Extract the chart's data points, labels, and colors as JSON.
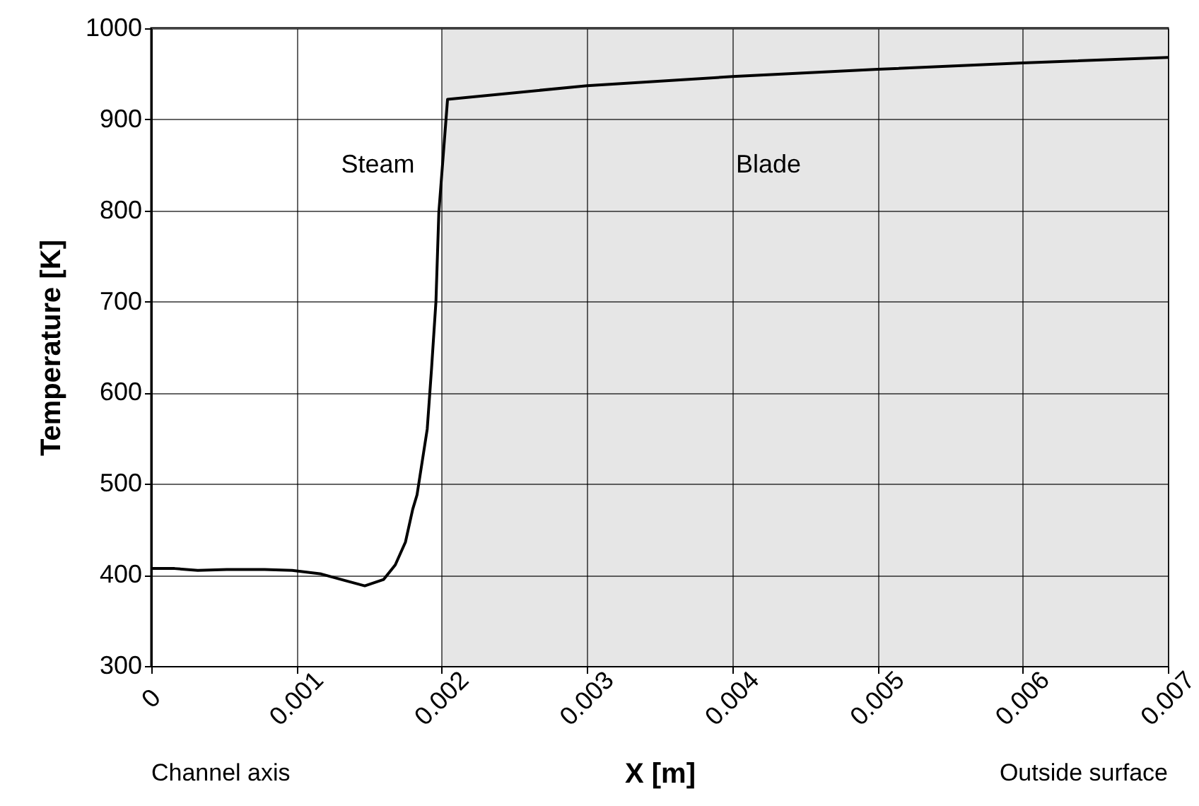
{
  "chart_data": {
    "type": "line",
    "xlabel": "X  [m]",
    "ylabel": "Temperature [K]",
    "series": [
      {
        "color": "#000000",
        "x": [
          0,
          0.00016,
          0.00032,
          0.00052,
          0.00078,
          0.00097,
          0.00117,
          0.00133,
          0.00147,
          0.0016,
          0.00168,
          0.00175,
          0.0018,
          0.00183,
          0.0019,
          0.00193,
          0.00196,
          0.00198,
          0.00204,
          0.003,
          0.004,
          0.005,
          0.006,
          0.007
        ],
        "values": [
          407,
          407,
          405,
          406,
          406,
          405,
          401,
          394,
          388,
          395,
          411,
          436,
          472,
          488,
          560,
          627,
          700,
          798,
          922,
          937,
          947,
          955,
          962,
          968
        ]
      }
    ],
    "bands": [
      {
        "axis": "x",
        "from": 0,
        "to": 0.002,
        "label": "Steam",
        "color": "#ffffff"
      },
      {
        "axis": "x",
        "from": 0.002,
        "to": 0.007,
        "label": "Blade",
        "color": "#e6e6e6"
      }
    ],
    "annotations": [
      "Channel axis",
      "Outside surface"
    ],
    "xlim": [
      0,
      0.007
    ],
    "xticks": [
      0,
      0.001,
      0.002,
      0.003,
      0.004,
      0.005,
      0.006,
      0.007
    ],
    "ylim": [
      300,
      1000
    ],
    "yticks": [
      300,
      400,
      500,
      600,
      700,
      800,
      900,
      1000
    ],
    "grid": true,
    "marker": "none",
    "line_style": "solid"
  }
}
